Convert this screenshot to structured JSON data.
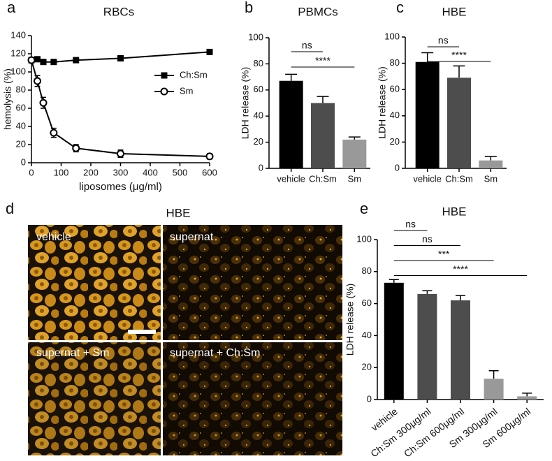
{
  "chart_data": [
    {
      "type": "line",
      "panel_label": "a",
      "title": "RBCs",
      "x_label": "liposomes (μg/ml)",
      "y_label": "hemolysis (%)",
      "x": [
        0,
        20,
        40,
        75,
        150,
        300,
        600
      ],
      "series": [
        {
          "name": "Ch:Sm",
          "color": "#000000",
          "marker": "square",
          "values": [
            113,
            114,
            111,
            111,
            113,
            115,
            122
          ],
          "errors": [
            2,
            2,
            2,
            2,
            2,
            2,
            2
          ]
        },
        {
          "name": "Sm",
          "color": "#000000",
          "marker": "circle",
          "values": [
            113,
            90,
            66,
            33,
            16,
            10,
            7
          ],
          "errors": [
            2,
            6,
            6,
            5,
            4,
            4,
            3
          ]
        }
      ],
      "xlim": [
        0,
        600
      ],
      "xticks": [
        0,
        100,
        200,
        300,
        400,
        500,
        600
      ],
      "ylim": [
        0,
        140
      ],
      "yticks": [
        0,
        20,
        40,
        60,
        80,
        100,
        120,
        140
      ]
    },
    {
      "type": "bar",
      "panel_label": "b",
      "title": "PBMCs",
      "y_label": "LDH release (%)",
      "categories": [
        "vehicle",
        "Ch:Sm",
        "Sm"
      ],
      "values": [
        67,
        50,
        22
      ],
      "errors": [
        5,
        5,
        2
      ],
      "colors": [
        "#000000",
        "#4d4d4d",
        "#999999"
      ],
      "comparisons": [
        {
          "label": "ns",
          "categories": [
            "vehicle",
            "Ch:Sm"
          ]
        },
        {
          "label": "****",
          "categories": [
            "vehicle",
            "Sm"
          ]
        }
      ],
      "ylim": [
        0,
        100
      ],
      "yticks": [
        0,
        20,
        40,
        60,
        80,
        100
      ]
    },
    {
      "type": "bar",
      "panel_label": "c",
      "title": "HBE",
      "y_label": "LDH release (%)",
      "categories": [
        "vehicle",
        "Ch:Sm",
        "Sm"
      ],
      "values": [
        81,
        69,
        6
      ],
      "errors": [
        7,
        9,
        3
      ],
      "colors": [
        "#000000",
        "#4d4d4d",
        "#999999"
      ],
      "comparisons": [
        {
          "label": "ns",
          "categories": [
            "vehicle",
            "Ch:Sm"
          ]
        },
        {
          "label": "****",
          "categories": [
            "vehicle",
            "Sm"
          ]
        }
      ],
      "ylim": [
        0,
        100
      ],
      "yticks": [
        0,
        20,
        40,
        60,
        80,
        100
      ]
    },
    {
      "type": "bar",
      "panel_label": "e",
      "title": "HBE",
      "y_label": "LDH release (%)",
      "categories": [
        "vehicle",
        "Ch:Sm 300μg/ml",
        "Ch:Sm 600μg/ml",
        "Sm 300μg/ml",
        "Sm 600μg/ml"
      ],
      "values": [
        73,
        66,
        62,
        13,
        2
      ],
      "errors": [
        2,
        2,
        3,
        5,
        2
      ],
      "colors": [
        "#000000",
        "#4d4d4d",
        "#4d4d4d",
        "#999999",
        "#999999"
      ],
      "comparisons": [
        {
          "label": "ns",
          "categories": [
            "vehicle",
            "Ch:Sm 300μg/ml"
          ]
        },
        {
          "label": "ns",
          "categories": [
            "vehicle",
            "Ch:Sm 600μg/ml"
          ]
        },
        {
          "label": "***",
          "categories": [
            "vehicle",
            "Sm 300μg/ml"
          ]
        },
        {
          "label": "****",
          "categories": [
            "vehicle",
            "Sm 600μg/ml"
          ]
        }
      ],
      "ylim": [
        0,
        100
      ],
      "yticks": [
        0,
        20,
        40,
        60,
        80,
        100
      ]
    }
  ],
  "panel_d": {
    "panel_label": "d",
    "title": "HBE",
    "images": [
      "vehicle",
      "supernat",
      "supernat + Sm",
      "supernat + Ch:Sm"
    ]
  }
}
